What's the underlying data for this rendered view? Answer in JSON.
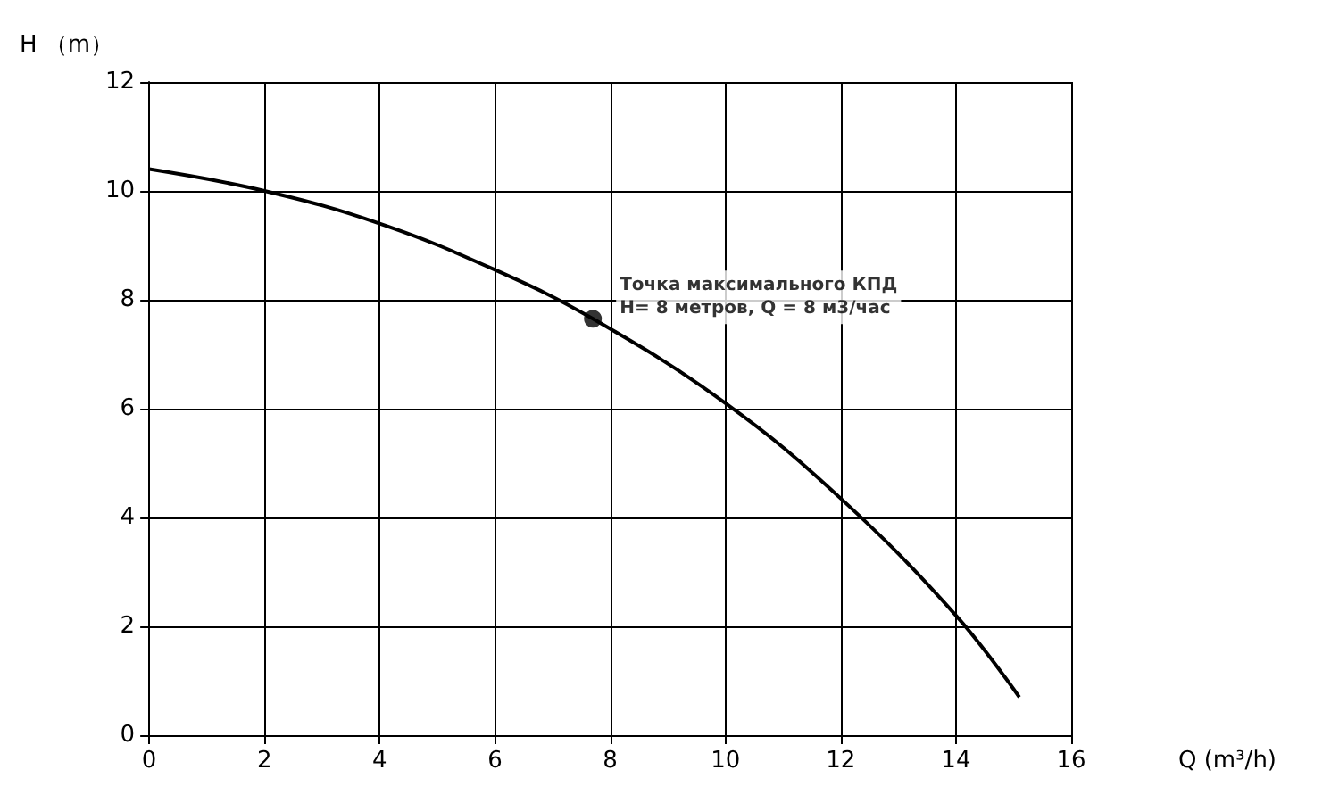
{
  "chart_data": {
    "type": "line",
    "xlabel": "Q (m³/h)",
    "ylabel": "H （m）",
    "xlim": [
      0,
      16
    ],
    "ylim": [
      0,
      12
    ],
    "xticks": [
      0,
      2,
      4,
      6,
      8,
      10,
      12,
      14,
      16
    ],
    "yticks": [
      0,
      2,
      4,
      6,
      8,
      10,
      12
    ],
    "grid": true,
    "series": [
      {
        "color": "#000000",
        "marker": "none",
        "x": [
          0,
          2,
          4,
          6,
          7.7,
          10,
          12,
          14,
          15.1
        ],
        "values": [
          10.4,
          10.0,
          9.4,
          8.55,
          7.65,
          6.1,
          4.35,
          2.2,
          0.7
        ]
      },
      {
        "type": "scatter",
        "color": "#000000",
        "marker": "circle",
        "x": [
          7.7
        ],
        "values": [
          7.65
        ]
      }
    ],
    "annotations": [
      {
        "text": "Точка максимального КПД\nH= 8 метров, Q = 8 м3/час",
        "x": 7.7,
        "y": 7.65
      }
    ]
  }
}
